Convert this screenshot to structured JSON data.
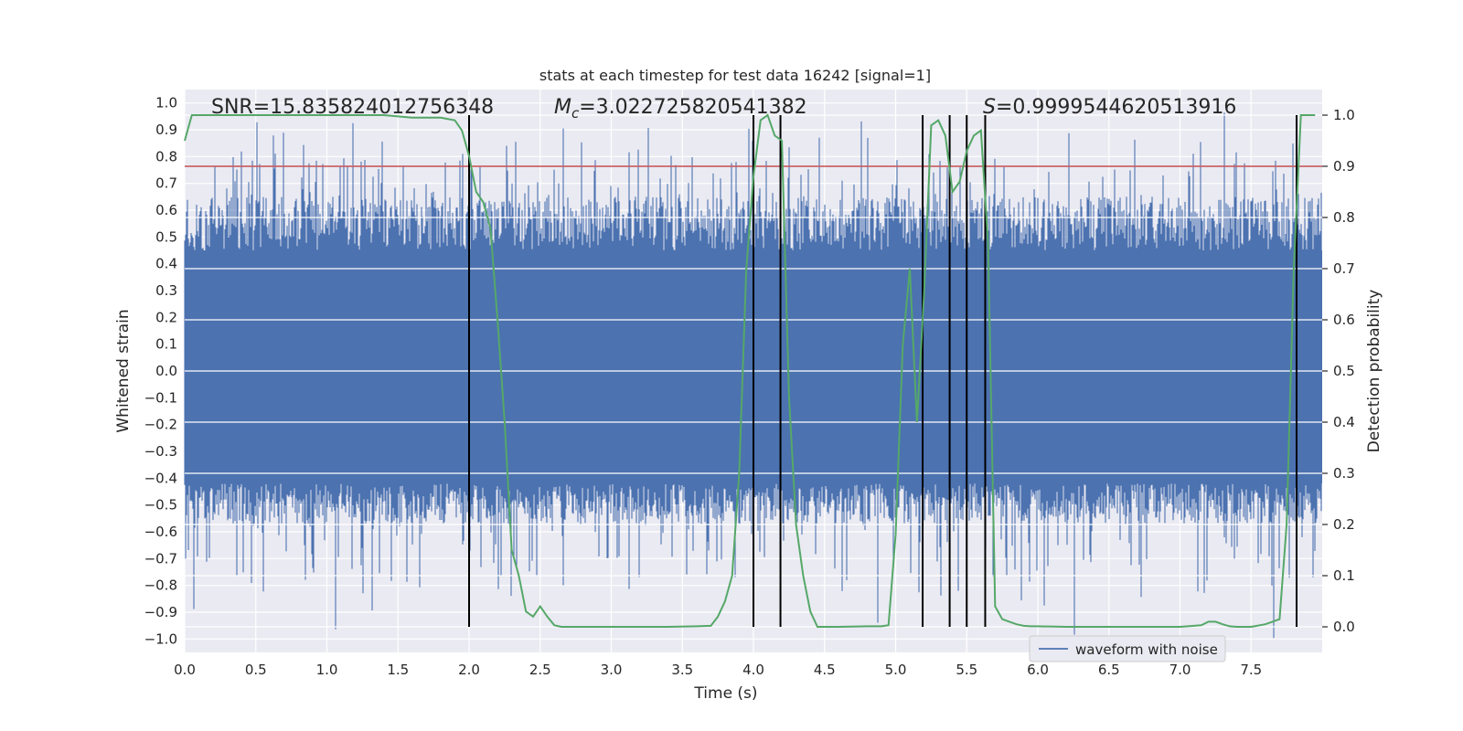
{
  "chart_data": {
    "type": "line",
    "title": "stats at each timestep for test data 16242 [signal=1]",
    "xlabel": "Time (s)",
    "ylabel": "Whitened strain",
    "ylabel_right": "Detection probability",
    "xlim": [
      0.0,
      8.0
    ],
    "ylim": [
      -1.05,
      1.05
    ],
    "ylim_right": [
      -0.05,
      1.05
    ],
    "x_ticks": [
      0.0,
      0.5,
      1.0,
      1.5,
      2.0,
      2.5,
      3.0,
      3.5,
      4.0,
      4.5,
      5.0,
      5.5,
      6.0,
      6.5,
      7.0,
      7.5
    ],
    "x_tick_labels": [
      "0.0",
      "0.5",
      "1.0",
      "1.5",
      "2.0",
      "2.5",
      "3.0",
      "3.5",
      "4.0",
      "4.5",
      "5.0",
      "5.5",
      "6.0",
      "6.5",
      "7.0",
      "7.5"
    ],
    "y_ticks": [
      -1.0,
      -0.9,
      -0.8,
      -0.7,
      -0.6,
      -0.5,
      -0.4,
      -0.3,
      -0.2,
      -0.1,
      0.0,
      0.1,
      0.2,
      0.3,
      0.4,
      0.5,
      0.6,
      0.7,
      0.8,
      0.9,
      1.0
    ],
    "y_tick_labels": [
      "−1.0",
      "−0.9",
      "−0.8",
      "−0.7",
      "−0.6",
      "−0.5",
      "−0.4",
      "−0.3",
      "−0.2",
      "−0.1",
      "0.0",
      "0.1",
      "0.2",
      "0.3",
      "0.4",
      "0.5",
      "0.6",
      "0.7",
      "0.8",
      "0.9",
      "1.0"
    ],
    "y_right_ticks": [
      0.0,
      0.1,
      0.2,
      0.3,
      0.4,
      0.5,
      0.6,
      0.7,
      0.8,
      0.9,
      1.0
    ],
    "y_right_tick_labels": [
      "0.0",
      "0.1",
      "0.2",
      "0.3",
      "0.4",
      "0.5",
      "0.6",
      "0.7",
      "0.8",
      "0.9",
      "1.0"
    ],
    "annotations": {
      "snr": "SNR=15.835824012756348",
      "mc_symbol": "M",
      "mc_subscript": "c",
      "mc_value": "=3.022725820541382",
      "s_symbol": "S",
      "s_value": "=0.9999544620513916"
    },
    "threshold_right": 0.9,
    "vertical_lines_x": [
      2.0,
      4.0,
      4.19,
      5.19,
      5.38,
      5.5,
      5.63,
      7.82
    ],
    "detection_probability": {
      "x": [
        0.0,
        0.05,
        0.1,
        0.2,
        0.4,
        0.6,
        0.8,
        1.0,
        1.2,
        1.4,
        1.6,
        1.7,
        1.8,
        1.9,
        1.95,
        2.0,
        2.05,
        2.1,
        2.15,
        2.2,
        2.25,
        2.3,
        2.35,
        2.4,
        2.45,
        2.5,
        2.55,
        2.6,
        2.65,
        2.7,
        2.75,
        2.8,
        3.0,
        3.2,
        3.4,
        3.6,
        3.7,
        3.75,
        3.8,
        3.85,
        3.9,
        3.95,
        4.0,
        4.05,
        4.1,
        4.15,
        4.2,
        4.25,
        4.3,
        4.35,
        4.4,
        4.45,
        4.5,
        4.6,
        4.8,
        4.9,
        4.95,
        5.0,
        5.05,
        5.1,
        5.15,
        5.2,
        5.25,
        5.3,
        5.35,
        5.4,
        5.45,
        5.5,
        5.55,
        5.6,
        5.65,
        5.7,
        5.75,
        5.8,
        5.85,
        5.9,
        5.95,
        6.0,
        6.2,
        6.5,
        7.0,
        7.15,
        7.2,
        7.25,
        7.3,
        7.35,
        7.4,
        7.5,
        7.6,
        7.65,
        7.7,
        7.75,
        7.8,
        7.85,
        7.9,
        7.95
      ],
      "y": [
        0.95,
        1.0,
        1.0,
        1.0,
        1.0,
        1.0,
        1.0,
        1.0,
        1.0,
        1.0,
        0.995,
        0.995,
        0.995,
        0.99,
        0.97,
        0.92,
        0.85,
        0.83,
        0.78,
        0.6,
        0.4,
        0.15,
        0.1,
        0.03,
        0.02,
        0.04,
        0.02,
        0.003,
        0.0,
        0.0,
        0.0,
        0.0,
        0.0,
        0.0,
        0.0,
        0.001,
        0.002,
        0.02,
        0.05,
        0.1,
        0.3,
        0.7,
        0.88,
        0.99,
        1.0,
        0.96,
        0.95,
        0.45,
        0.2,
        0.1,
        0.03,
        0.0,
        0.0,
        0.0,
        0.001,
        0.001,
        0.003,
        0.18,
        0.55,
        0.7,
        0.4,
        0.65,
        0.98,
        0.99,
        0.96,
        0.85,
        0.87,
        0.93,
        0.96,
        0.97,
        0.75,
        0.04,
        0.015,
        0.01,
        0.005,
        0.002,
        0.001,
        0.001,
        0.0,
        0.0,
        0.0,
        0.003,
        0.01,
        0.01,
        0.005,
        0.001,
        0.0,
        0.0,
        0.005,
        0.01,
        0.015,
        0.2,
        0.7,
        1.0,
        1.0,
        1.0
      ]
    },
    "legend": {
      "entries": [
        "waveform with noise"
      ],
      "placement": "bottom-right"
    },
    "series_colors": {
      "waveform": "#4c72b0",
      "probability": "#55a868",
      "threshold": "#c44e52",
      "vlines": "#000000",
      "axes_bg": "#eaeaf2"
    }
  }
}
